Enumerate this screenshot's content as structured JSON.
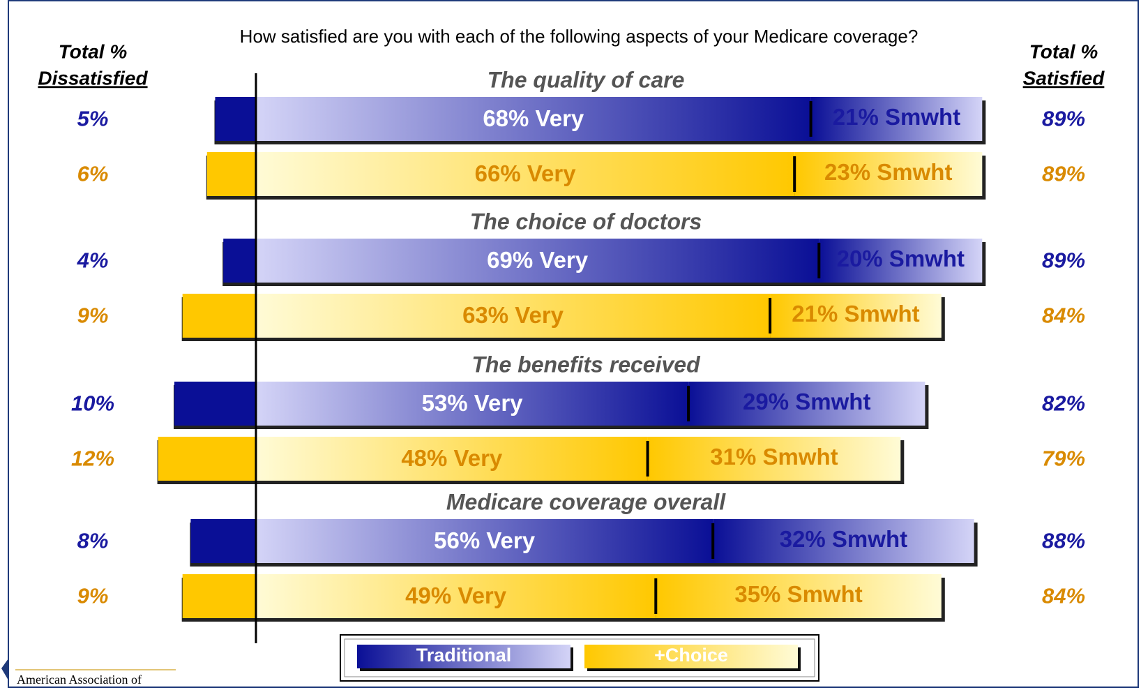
{
  "chart_data": {
    "type": "diverging_bar",
    "title": "How satisfied are you with each of the following aspects of your Medicare coverage?",
    "left_header": [
      "Total %",
      "Dissatisfied"
    ],
    "right_header": [
      "Total %",
      "Satisfied"
    ],
    "categories": [
      "The quality of care",
      "The choice of doctors",
      "The benefits received",
      "Medicare coverage overall"
    ],
    "series": [
      {
        "name": "Traditional",
        "color": "#0a0f96",
        "light": "#d4d4f7",
        "text_color": "#1a1aa0",
        "very_text_color": "#ffffff",
        "dissatisfied": {
          "values": [
            5,
            4,
            10,
            8
          ],
          "value_labels": [
            "5%",
            "4%",
            "10%",
            "8%"
          ]
        },
        "very": {
          "values": [
            68,
            69,
            53,
            56
          ],
          "value_labels": [
            "68% Very",
            "69% Very",
            "53% Very",
            "56% Very"
          ]
        },
        "somewhat": {
          "values": [
            21,
            20,
            29,
            32
          ],
          "value_labels": [
            "21% Smwht",
            "20% Smwht",
            "29% Smwht",
            "32% Smwht"
          ]
        },
        "satisfied": {
          "values": [
            89,
            89,
            82,
            88
          ],
          "value_labels": [
            "89%",
            "89%",
            "82%",
            "88%"
          ]
        }
      },
      {
        "name": "+Choice",
        "color": "#ffc800",
        "light": "#fffbd6",
        "text_color": "#d98a00",
        "very_text_color": "#d98a00",
        "dissatisfied": {
          "values": [
            6,
            9,
            12,
            9
          ],
          "value_labels": [
            "6%",
            "9%",
            "12%",
            "9%"
          ]
        },
        "very": {
          "values": [
            66,
            63,
            48,
            49
          ],
          "value_labels": [
            "66% Very",
            "63% Very",
            "48% Very",
            "49% Very"
          ]
        },
        "somewhat": {
          "values": [
            23,
            21,
            31,
            35
          ],
          "value_labels": [
            "23% Smwht",
            "21% Smwht",
            "31% Smwht",
            "35% Smwht"
          ]
        },
        "satisfied": {
          "values": [
            89,
            84,
            79,
            84
          ],
          "value_labels": [
            "89%",
            "84%",
            "79%",
            "84%"
          ]
        }
      }
    ],
    "logo_text": "American Association of"
  }
}
